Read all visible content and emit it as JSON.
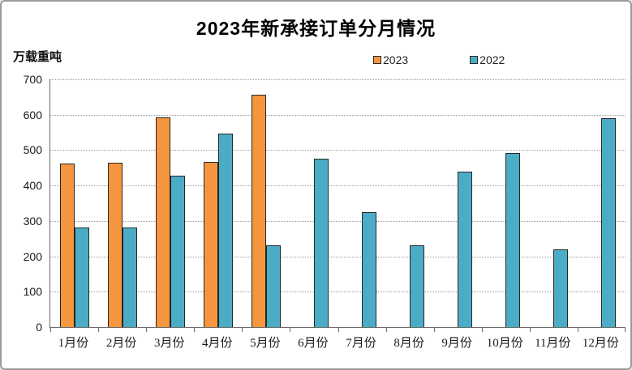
{
  "chart_data": {
    "type": "bar",
    "title": "2023年新承接订单分月情况",
    "ylabel": "万载重吨",
    "xlabel": "",
    "ylim": [
      0,
      700
    ],
    "ytick_interval": 100,
    "yticks": [
      0,
      100,
      200,
      300,
      400,
      500,
      600,
      700
    ],
    "grid": "horizontal-dotted",
    "legend_position": "top-center",
    "categories": [
      "1月份",
      "2月份",
      "3月份",
      "4月份",
      "5月份",
      "6月份",
      "7月份",
      "8月份",
      "9月份",
      "10月份",
      "11月份",
      "12月份"
    ],
    "series": [
      {
        "name": "2023",
        "color": "#F5963F",
        "values": [
          462,
          464,
          593,
          467,
          657,
          null,
          null,
          null,
          null,
          null,
          null,
          null
        ]
      },
      {
        "name": "2022",
        "color": "#4BACC6",
        "values": [
          281,
          282,
          428,
          546,
          230,
          476,
          326,
          232,
          440,
          493,
          219,
          591
        ]
      }
    ],
    "colors": {
      "bar_border": "#262626",
      "axis_line": "#6b6b6b",
      "grid_line": "#9a9a9a",
      "title_text": "#000000",
      "frame_border": "#9b9b9b"
    }
  }
}
